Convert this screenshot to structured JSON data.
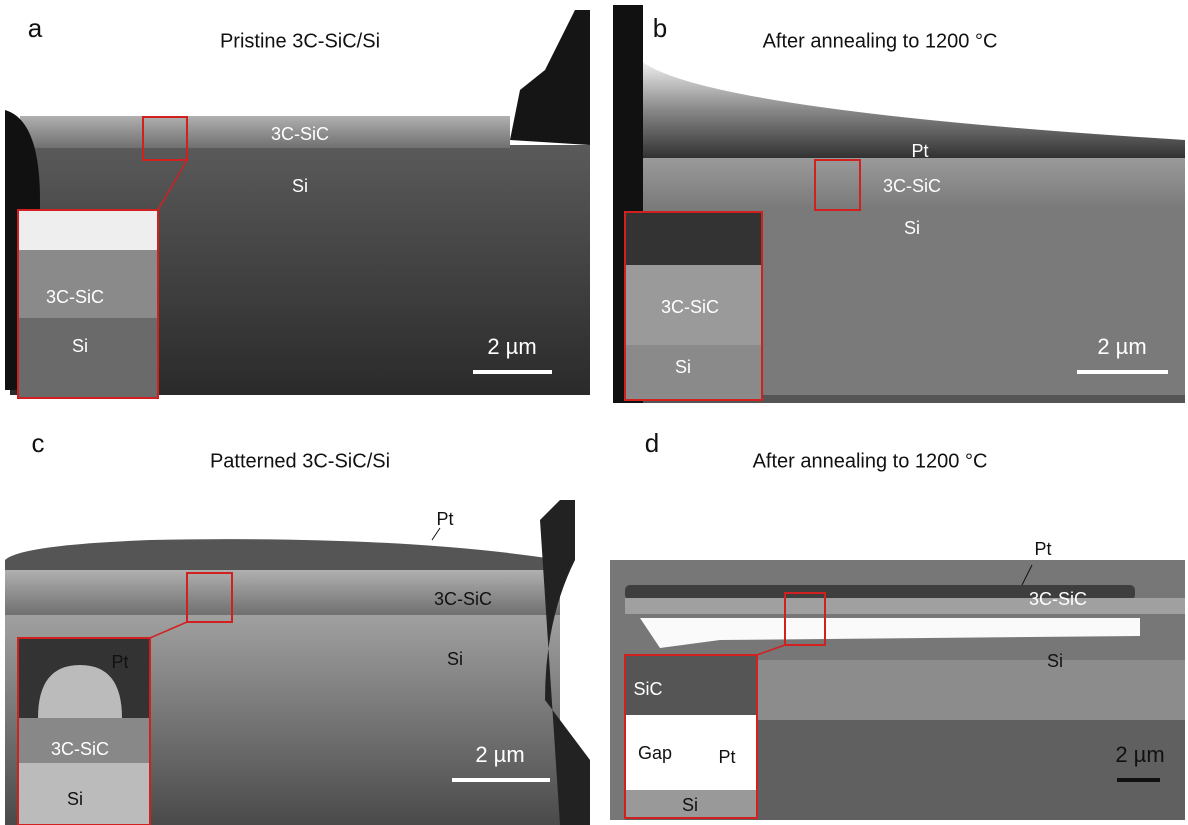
{
  "panels": [
    {
      "letter": "a",
      "title": "Pristine 3C-SiC/Si",
      "labels": [
        "3C-SiC",
        "Si"
      ],
      "inset_labels": [
        "3C-SiC",
        "Si"
      ],
      "scale_bar": "2 µm"
    },
    {
      "letter": "b",
      "title": "After annealing to 1200 °C",
      "labels": [
        "Pt",
        "3C-SiC",
        "Si"
      ],
      "inset_labels": [
        "3C-SiC",
        "Si"
      ],
      "scale_bar": "2 µm"
    },
    {
      "letter": "c",
      "title": "Patterned 3C-SiC/Si",
      "labels": [
        "Pt",
        "3C-SiC",
        "Si"
      ],
      "inset_labels": [
        "Pt",
        "3C-SiC",
        "Si"
      ],
      "scale_bar": "2 µm"
    },
    {
      "letter": "d",
      "title": "After annealing to 1200 °C",
      "labels": [
        "Pt",
        "3C-SiC",
        "Si"
      ],
      "inset_labels": [
        "SiC",
        "Gap",
        "Pt",
        "Si"
      ],
      "scale_bar": "2 µm"
    }
  ]
}
